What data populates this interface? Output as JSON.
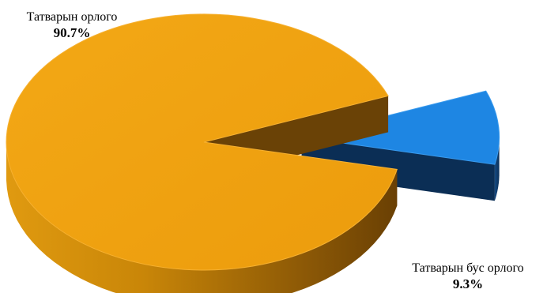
{
  "chart_data": {
    "type": "pie",
    "style": "3d-exploded",
    "slices": [
      {
        "label": "Татварын орлого",
        "value": 90.7,
        "value_label": "90.7%",
        "color": "#F0A010"
      },
      {
        "label": "Татварын бус орлого",
        "value": 9.3,
        "value_label": "9.3%",
        "color": "#1E86E3"
      }
    ],
    "title": "",
    "legend": "none"
  }
}
